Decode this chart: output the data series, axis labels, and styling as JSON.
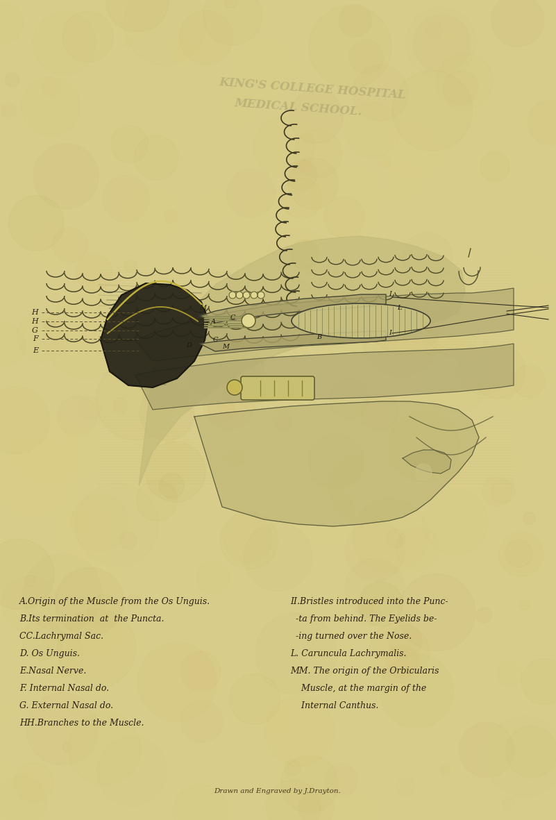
{
  "bg_color": "#d8cc8a",
  "fig_width": 8.01,
  "fig_height": 11.81,
  "stamp_text_1": "KING'S COLLEGE HOSPITAL",
  "stamp_text_2": "MEDICAL SCHOOL.",
  "stamp_color": "#a09868",
  "stamp_fontsize": 12,
  "left_legend": [
    "A.Origin of the Muscle from the Os Unguis.",
    "B.Its termination  at  the Puncta.",
    "CC.Lachrymal Sac.",
    "D. Os Unguis.",
    "E.Nasal Nerve.",
    "F. Internal Nasal do.",
    "G. External Nasal do.",
    "HH.Branches to the Muscle."
  ],
  "right_legend_line1": "II.Bristles introduced into the Punc-",
  "right_legend_line2": "  -ta from behind. The Eyelids be-",
  "right_legend_line3": "  -ing turned over the Nose.",
  "right_legend_line4": "L. Caruncula Lachrymalis.",
  "right_legend_line5": "MM. The origin of the Orbicularis",
  "right_legend_line6": "    Muscle, at the margin of the",
  "right_legend_line7": "    Internal Canthus.",
  "legend_fontsize": 9.0,
  "legend_color": "#2a2010",
  "footer_text": "Drawn and Engraved by J.Drayton.",
  "footer_fontsize": 7.5,
  "footer_color": "#4a3820"
}
